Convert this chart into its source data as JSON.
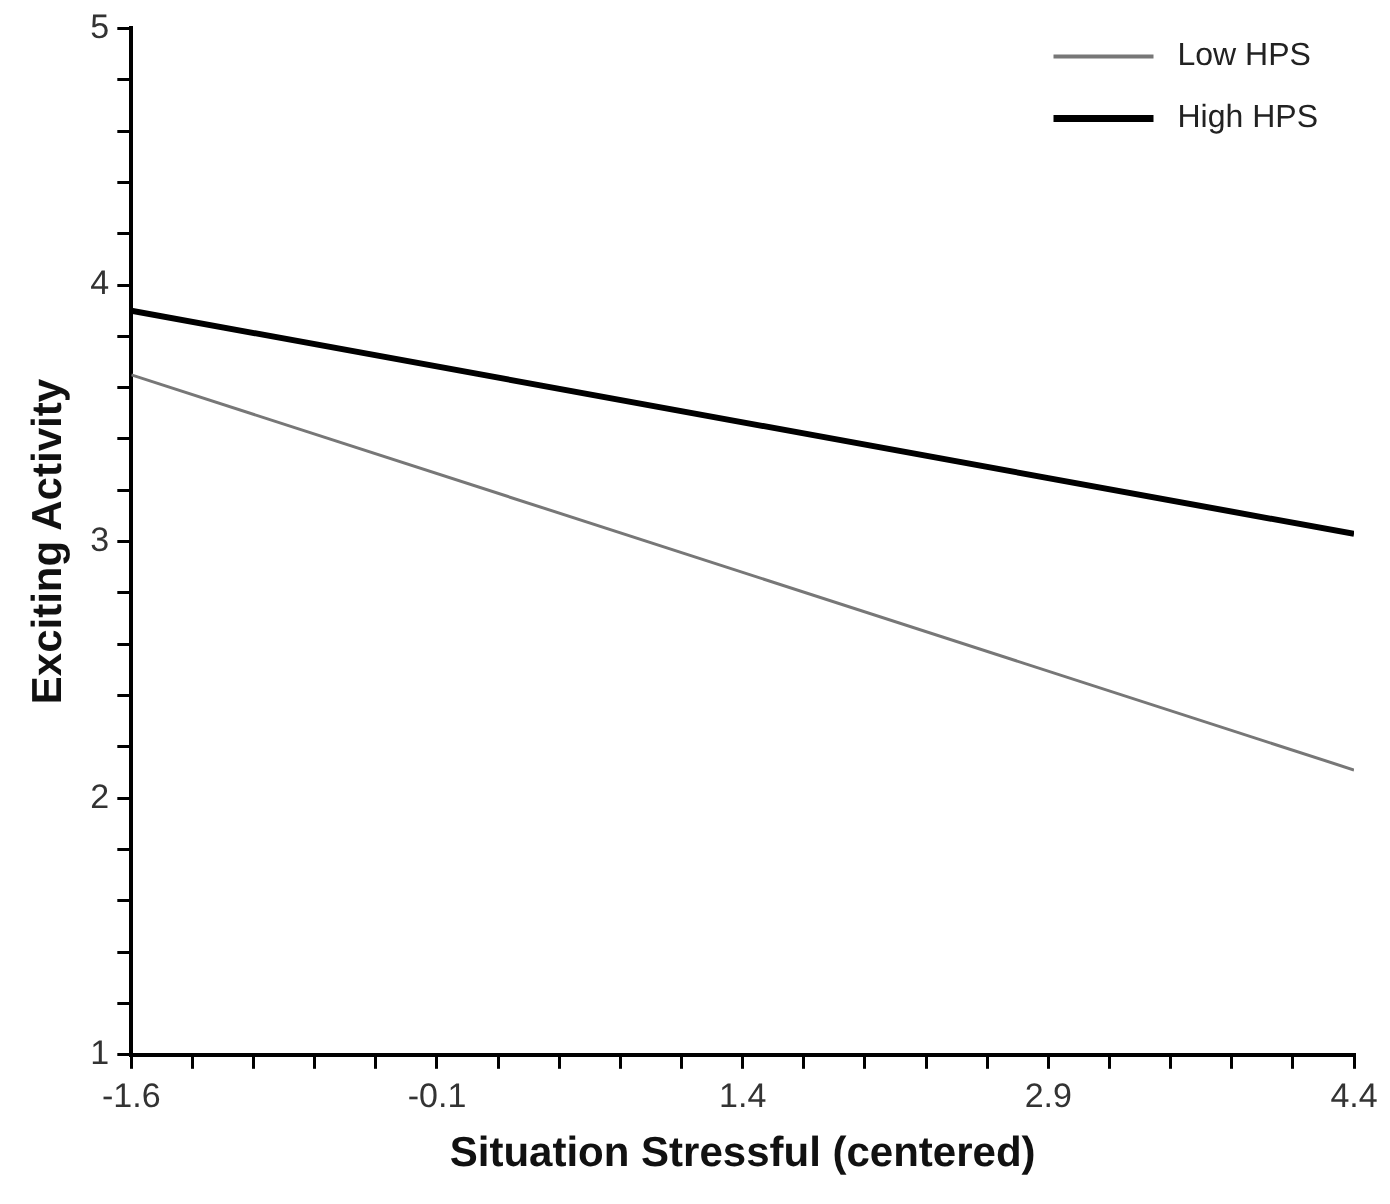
{
  "chart_data": {
    "type": "line",
    "xlabel": "Situation Stressful (centered)",
    "ylabel": "Exciting Activity",
    "x": [
      -1.6,
      4.4
    ],
    "series": [
      {
        "name": "Low HPS",
        "color": "#777777",
        "values": [
          3.65,
          2.11
        ]
      },
      {
        "name": "High HPS",
        "color": "#000000",
        "values": [
          3.9,
          3.03
        ]
      }
    ],
    "xlim": [
      -1.6,
      4.4
    ],
    "xticks": [
      -1.6,
      {
        "value": -1.3,
        "label": null
      },
      {
        "value": -1.0,
        "label": null
      },
      {
        "value": -0.7,
        "label": null
      },
      {
        "value": -0.4,
        "label": null
      },
      -0.1,
      {
        "value": 0.2,
        "label": null
      },
      {
        "value": 0.5,
        "label": null
      },
      {
        "value": 0.8,
        "label": null
      },
      {
        "value": 1.1,
        "label": null
      },
      1.4,
      {
        "value": 1.7,
        "label": null
      },
      {
        "value": 2.0,
        "label": null
      },
      {
        "value": 2.3,
        "label": null
      },
      {
        "value": 2.6,
        "label": null
      },
      2.9,
      {
        "value": 3.2,
        "label": null
      },
      {
        "value": 3.5,
        "label": null
      },
      {
        "value": 3.8,
        "label": null
      },
      {
        "value": 4.1,
        "label": null
      },
      4.4
    ],
    "ylim": [
      1,
      5
    ],
    "yticks": [
      1,
      {
        "value": 1.2,
        "label": null
      },
      {
        "value": 1.4,
        "label": null
      },
      {
        "value": 1.6,
        "label": null
      },
      {
        "value": 1.8,
        "label": null
      },
      2,
      {
        "value": 2.2,
        "label": null
      },
      {
        "value": 2.4,
        "label": null
      },
      {
        "value": 2.6,
        "label": null
      },
      {
        "value": 2.8,
        "label": null
      },
      3,
      {
        "value": 3.2,
        "label": null
      },
      {
        "value": 3.4,
        "label": null
      },
      {
        "value": 3.6,
        "label": null
      },
      {
        "value": 3.8,
        "label": null
      },
      4,
      {
        "value": 4.2,
        "label": null
      },
      {
        "value": 4.4,
        "label": null
      },
      {
        "value": 4.6,
        "label": null
      },
      {
        "value": 4.8,
        "label": null
      },
      5
    ],
    "legend": "top right",
    "marker": "none",
    "line_style": "solid",
    "grid": false
  }
}
